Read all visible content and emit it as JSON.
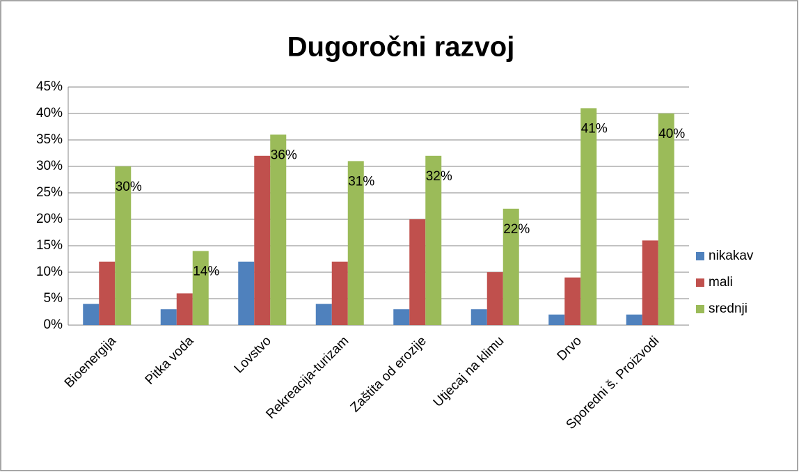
{
  "chart_data": {
    "type": "bar",
    "title": "Dugoročni razvoj",
    "categories": [
      "Bioenergija",
      "Pitka voda",
      "Lovstvo",
      "Rekreacija-turizam",
      "Zaštita od erozije",
      "Utjecaj na klimu",
      "Drvo",
      "Sporedni š. Proizvodi"
    ],
    "series": [
      {
        "name": "nikakav",
        "color": "#4f81bd",
        "values": [
          4,
          3,
          12,
          4,
          3,
          3,
          2,
          2
        ]
      },
      {
        "name": "mali",
        "color": "#c0504d",
        "values": [
          12,
          6,
          32,
          12,
          20,
          10,
          9,
          16
        ]
      },
      {
        "name": "srednji",
        "color": "#9bbb59",
        "values": [
          30,
          14,
          36,
          31,
          32,
          22,
          41,
          40
        ],
        "value_labels": [
          "30%",
          "14%",
          "36%",
          "31%",
          "32%",
          "22%",
          "41%",
          "40%"
        ]
      }
    ],
    "ylim": [
      0,
      45
    ],
    "yticks": [
      {
        "value": 0,
        "label": "0%"
      },
      {
        "value": 5,
        "label": "5%"
      },
      {
        "value": 10,
        "label": "10%"
      },
      {
        "value": 15,
        "label": "15%"
      },
      {
        "value": 20,
        "label": "20%"
      },
      {
        "value": 25,
        "label": "25%"
      },
      {
        "value": 30,
        "label": "30%"
      },
      {
        "value": 35,
        "label": "35%"
      },
      {
        "value": 40,
        "label": "40%"
      },
      {
        "value": 45,
        "label": "45%"
      }
    ],
    "grid": true,
    "legend": "right"
  }
}
